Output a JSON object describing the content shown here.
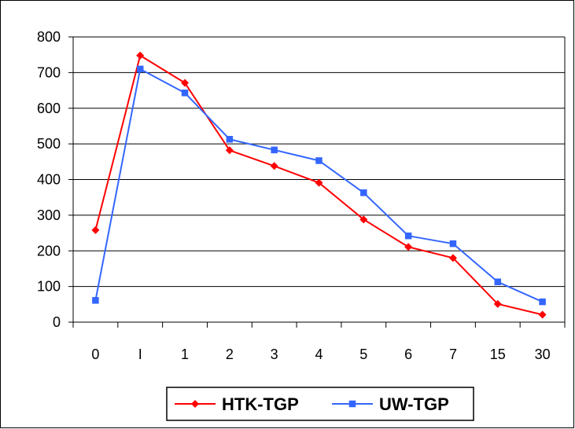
{
  "chart_data": {
    "type": "line",
    "title": "",
    "xlabel": "",
    "ylabel": "",
    "categories": [
      "0",
      "I",
      "1",
      "2",
      "3",
      "4",
      "5",
      "6",
      "7",
      "15",
      "30"
    ],
    "ylim": [
      0,
      800
    ],
    "yticks": [
      "0",
      "100",
      "200",
      "300",
      "400",
      "500",
      "600",
      "700",
      "800"
    ],
    "grid": "horizontal",
    "legend_position": "bottom",
    "series": [
      {
        "name": "HTK-TGP",
        "color": "#ff0000",
        "marker": "diamond",
        "values": [
          258,
          748,
          671,
          482,
          438,
          391,
          288,
          211,
          180,
          51,
          21
        ]
      },
      {
        "name": "UW-TGP",
        "color": "#3366ff",
        "marker": "square",
        "values": [
          61,
          710,
          643,
          513,
          483,
          453,
          363,
          242,
          220,
          113,
          57
        ]
      }
    ]
  }
}
